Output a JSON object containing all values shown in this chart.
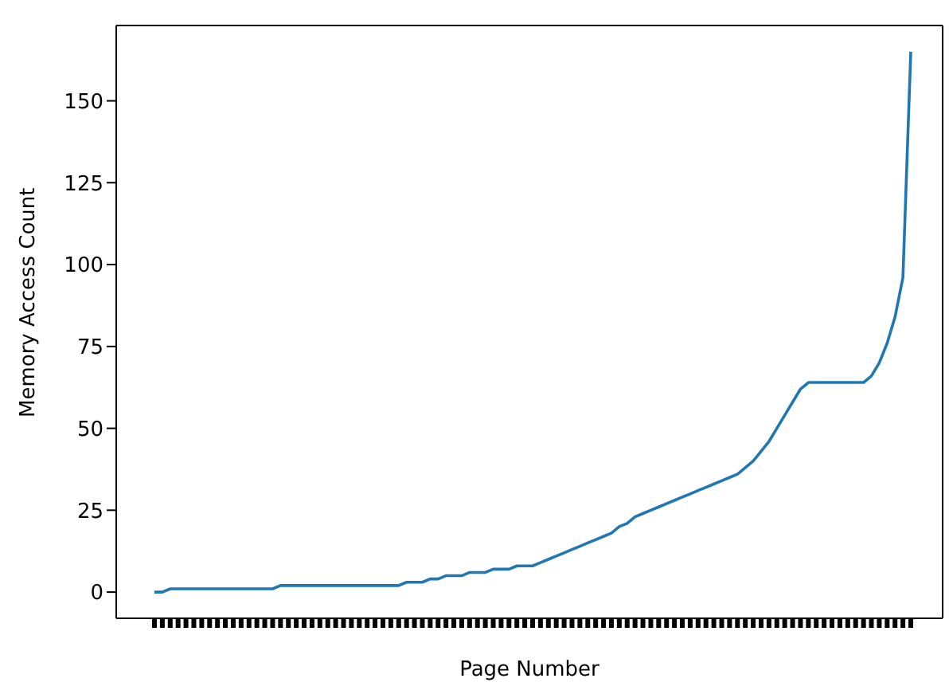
{
  "chart_data": {
    "type": "line",
    "xlabel": "Page Number",
    "ylabel": "Memory Access Count",
    "categories": [
      null,
      null,
      null,
      null,
      null,
      null,
      null,
      null,
      null,
      null,
      null,
      null,
      null,
      null,
      null,
      null,
      null,
      null,
      null,
      null,
      null,
      null,
      null,
      null,
      null,
      null,
      null,
      null,
      null,
      null,
      null,
      null,
      null,
      null,
      null,
      null,
      null,
      null,
      null,
      null,
      null,
      null,
      null,
      null,
      null,
      null,
      null,
      null,
      null,
      null,
      null,
      null,
      null,
      null,
      null,
      null,
      null,
      null,
      null,
      null,
      null,
      null,
      null,
      null,
      null,
      null,
      null,
      null,
      null,
      null,
      null,
      null,
      null,
      null,
      null,
      null,
      null,
      null,
      null,
      null,
      null,
      null,
      null,
      null,
      null,
      null,
      null,
      null,
      null,
      null,
      null,
      null,
      null,
      null,
      null,
      null,
      null
    ],
    "series": [
      {
        "color": "#1f77b4",
        "values": [
          0,
          0,
          1,
          1,
          1,
          1,
          1,
          1,
          1,
          1,
          1,
          1,
          1,
          1,
          1,
          1,
          2,
          2,
          2,
          2,
          2,
          2,
          2,
          2,
          2,
          2,
          2,
          2,
          2,
          2,
          2,
          2,
          3,
          3,
          3,
          4,
          4,
          5,
          5,
          5,
          6,
          6,
          6,
          7,
          7,
          7,
          8,
          8,
          8,
          9,
          10,
          11,
          12,
          13,
          14,
          15,
          16,
          17,
          18,
          20,
          21,
          23,
          24,
          25,
          26,
          27,
          28,
          29,
          30,
          31,
          32,
          33,
          34,
          35,
          36,
          38,
          40,
          43,
          46,
          50,
          54,
          58,
          62,
          64,
          64,
          64,
          64,
          64,
          64,
          64,
          64,
          66,
          70,
          76,
          84,
          96,
          165
        ]
      }
    ],
    "ylim": [
      -8,
      173
    ],
    "yticks": [
      0,
      25,
      50,
      75,
      100,
      125,
      150
    ],
    "grid": false,
    "legend": false,
    "marker": "none",
    "line_style": "solid"
  }
}
